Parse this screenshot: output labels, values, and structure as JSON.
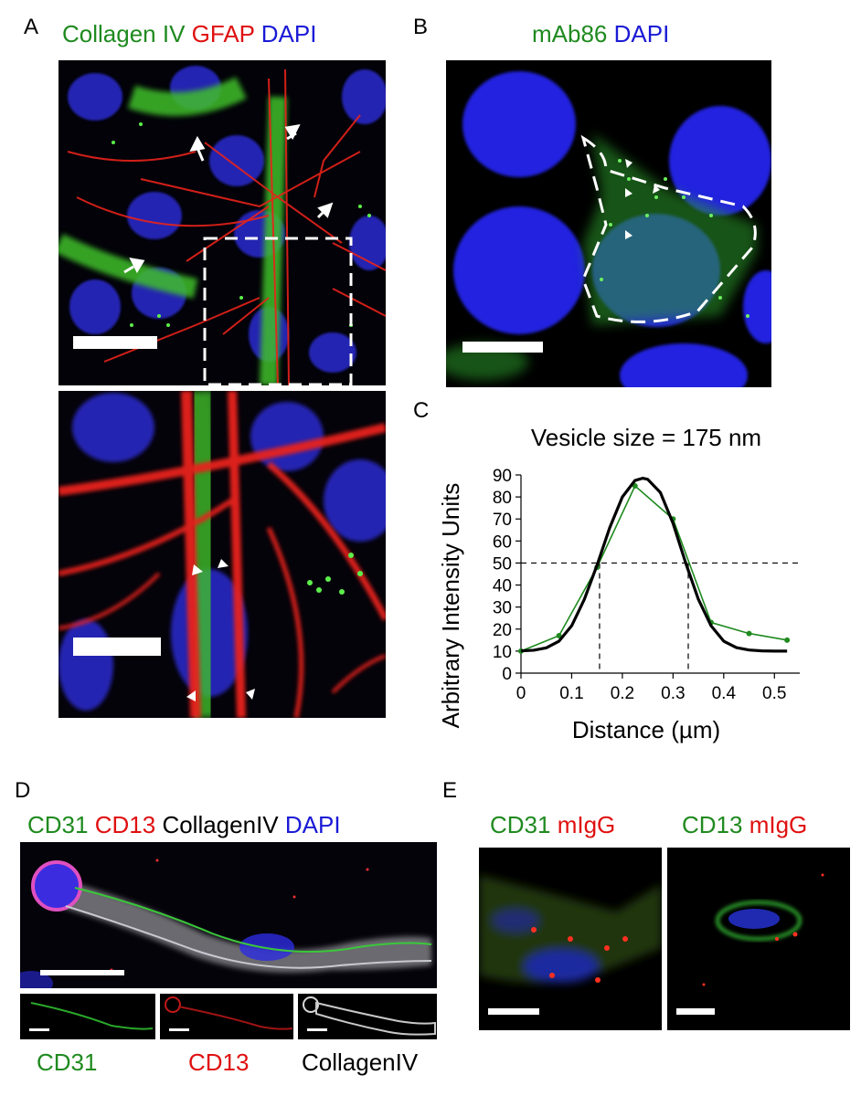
{
  "panels": {
    "A": {
      "letter": "A",
      "header": {
        "c1": "Collagen IV",
        "c2": "GFAP",
        "c3": "DAPI"
      }
    },
    "B": {
      "letter": "B",
      "header": {
        "c1": "mAb86",
        "c2": "DAPI"
      }
    },
    "C": {
      "letter": "C"
    },
    "D": {
      "letter": "D",
      "header": {
        "c1": "CD31",
        "c2": "CD13",
        "c3": "CollagenIV",
        "c4": "DAPI"
      },
      "sublabels": {
        "s1": "CD31",
        "s2": "CD13",
        "s3": "CollagenIV"
      }
    },
    "E": {
      "letter": "E",
      "left_header": {
        "c1": "CD31",
        "c2": "mIgG"
      },
      "right_header": {
        "c1": "CD13",
        "c2": "mIgG"
      }
    }
  },
  "colors": {
    "green": "#1f8a1f",
    "red": "#e01010",
    "blue": "#1a1ad6"
  },
  "chart_data": {
    "type": "line",
    "title": "Vesicle size = 175 nm",
    "xlabel": "Distance (µm)",
    "ylabel": "Arbitrary Intensity Units",
    "xlim": [
      0,
      0.55
    ],
    "ylim": [
      0,
      90
    ],
    "xticks": [
      "0",
      "0.1",
      "0.2",
      "0.3",
      "0.4",
      "0.5"
    ],
    "yticks": [
      "0",
      "10",
      "20",
      "30",
      "40",
      "50",
      "60",
      "70",
      "80",
      "90"
    ],
    "series": [
      {
        "style": "measured",
        "color": "#1f8a1f",
        "x": [
          0.0,
          0.075,
          0.15,
          0.225,
          0.3,
          0.375,
          0.45,
          0.525
        ],
        "y": [
          10,
          17,
          48,
          85,
          70,
          23,
          18,
          15
        ]
      },
      {
        "style": "gaussian-fit",
        "color": "#000000",
        "x": [
          0.0,
          0.025,
          0.05,
          0.075,
          0.1,
          0.125,
          0.15,
          0.175,
          0.2,
          0.225,
          0.24,
          0.25,
          0.275,
          0.3,
          0.325,
          0.35,
          0.375,
          0.4,
          0.425,
          0.45,
          0.475,
          0.5,
          0.525
        ],
        "y": [
          10.1,
          10.4,
          11.5,
          14.5,
          21.5,
          33.5,
          49,
          66,
          80,
          87.5,
          88.5,
          88,
          82,
          68,
          50,
          33.5,
          21.5,
          14.5,
          11.6,
          10.5,
          10.1,
          10.0,
          10.0
        ]
      }
    ],
    "half_max_line": 50,
    "fwhm_markers_x": [
      0.155,
      0.33
    ]
  }
}
